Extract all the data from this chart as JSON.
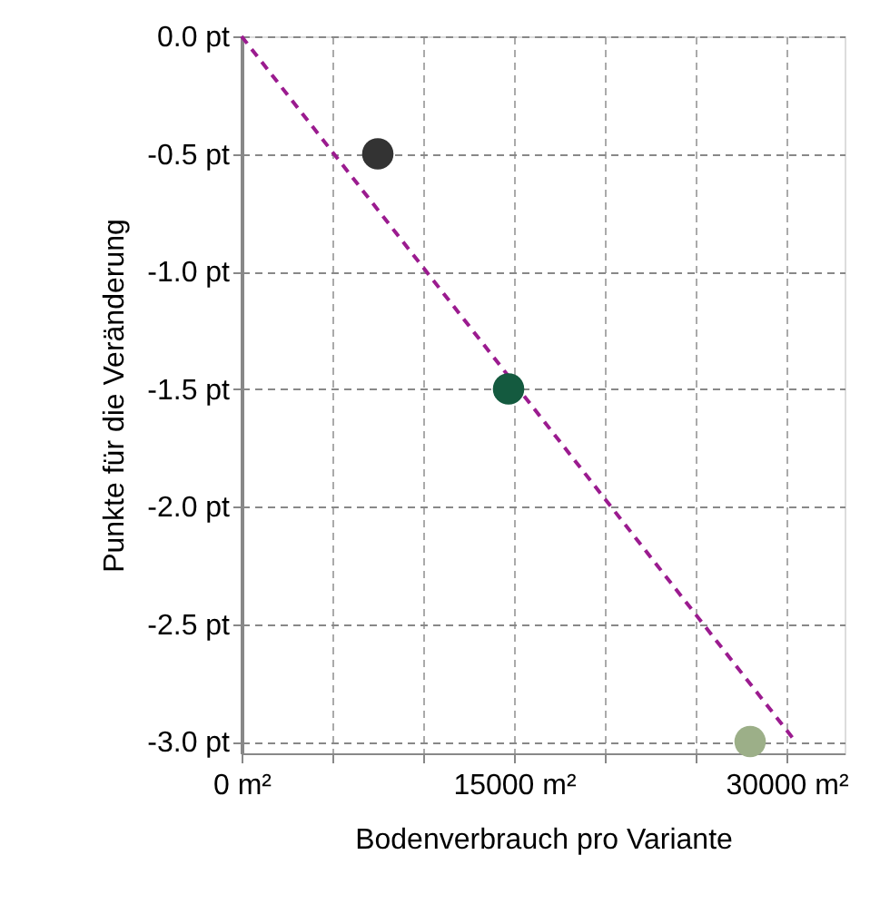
{
  "chart_data": {
    "type": "scatter",
    "xlabel": "Bodenverbrauch pro Variante",
    "ylabel": "Punkte für die Veränderung",
    "xlim": [
      0,
      33200
    ],
    "ylim": [
      -3.05,
      0
    ],
    "xticks": [
      {
        "value": 0,
        "label": "0 m²"
      },
      {
        "value": 5000,
        "label": null
      },
      {
        "value": 10000,
        "label": null
      },
      {
        "value": 15000,
        "label": "15000 m²"
      },
      {
        "value": 20000,
        "label": null
      },
      {
        "value": 25000,
        "label": null
      },
      {
        "value": 30000,
        "label": "30000 m²"
      }
    ],
    "yticks": [
      {
        "value": 0,
        "label": "0.0 pt"
      },
      {
        "value": -0.5,
        "label": "-0.5 pt"
      },
      {
        "value": -1,
        "label": "-1.0 pt"
      },
      {
        "value": -1.5,
        "label": "-1.5 pt"
      },
      {
        "value": -2,
        "label": "-2.0 pt"
      },
      {
        "value": -2.5,
        "label": "-2.5 pt"
      },
      {
        "value": -3,
        "label": "-3.0 pt"
      }
    ],
    "grid": true,
    "marker": "circle",
    "series": [
      {
        "x": [
          7500,
          14700,
          28000
        ],
        "values": [
          -0.5,
          -1.5,
          -3.0
        ],
        "colors": [
          "#333333",
          "#145a3f",
          "#9caf88"
        ]
      },
      {
        "type": "line",
        "x": [
          0,
          30500
        ],
        "values": [
          0,
          -3.0
        ],
        "color": "#9b1b8f",
        "line_style": "dashed",
        "marker": "none"
      }
    ]
  }
}
